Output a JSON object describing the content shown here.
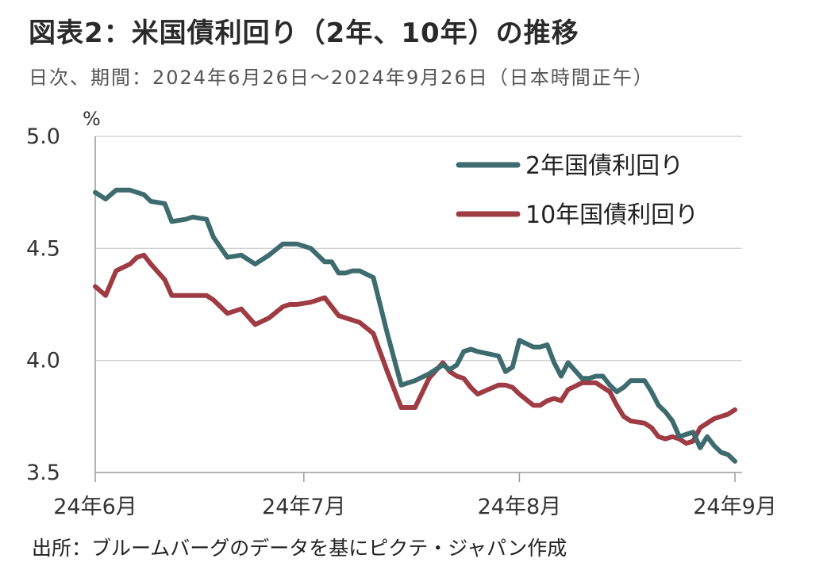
{
  "title": "図表2：米国債利回り（2年、10年）の推移",
  "subtitle": "日次、期間：2024年6月26日～2024年9月26日（日本時間正午）",
  "source": "出所：ブルームバーグのデータを基にピクテ・ジャパン作成",
  "colors": {
    "series_2y": "#3d6b6e",
    "series_10y": "#9e3b43",
    "grid": "#cfcfcf",
    "axis": "#9a9a9a"
  },
  "chart_data": {
    "type": "line",
    "ylabel": "%",
    "ylim": [
      3.5,
      5.0
    ],
    "yticks": [
      "5.0",
      "4.5",
      "4.0",
      "3.5"
    ],
    "ytick_values": [
      5.0,
      4.5,
      4.0,
      3.5
    ],
    "xlim": [
      0,
      92
    ],
    "xticks": [
      {
        "label": "24年6月",
        "pos": 0
      },
      {
        "label": "24年7月",
        "pos": 30
      },
      {
        "label": "24年8月",
        "pos": 61
      },
      {
        "label": "24年9月",
        "pos": 92
      }
    ],
    "legend_position": "top-right",
    "grid": true,
    "series": [
      {
        "name": "2年国債利回り",
        "x": [
          0,
          1.5,
          3,
          5,
          6,
          7,
          8,
          10,
          11,
          13,
          14,
          16,
          17,
          19,
          21,
          23,
          25,
          27,
          28,
          29,
          31,
          33,
          34,
          35,
          36,
          37,
          38,
          40,
          42,
          44,
          45,
          46,
          48,
          50,
          51,
          52,
          53,
          54,
          55,
          58,
          59,
          60,
          61,
          63,
          64,
          65,
          66,
          67,
          68,
          70,
          71,
          72,
          73,
          74,
          75,
          76,
          77,
          79,
          80,
          81,
          82,
          83,
          84,
          85,
          86,
          87,
          88,
          89,
          90,
          91,
          92
        ],
        "values": [
          4.75,
          4.72,
          4.76,
          4.76,
          4.75,
          4.74,
          4.71,
          4.7,
          4.62,
          4.63,
          4.64,
          4.63,
          4.55,
          4.46,
          4.47,
          4.43,
          4.47,
          4.52,
          4.52,
          4.52,
          4.5,
          4.44,
          4.44,
          4.39,
          4.39,
          4.4,
          4.4,
          4.37,
          4.12,
          3.89,
          3.9,
          3.91,
          3.94,
          3.98,
          3.96,
          3.98,
          4.04,
          4.05,
          4.04,
          4.02,
          3.95,
          3.97,
          4.09,
          4.06,
          4.06,
          4.07,
          3.99,
          3.93,
          3.99,
          3.92,
          3.92,
          3.93,
          3.93,
          3.89,
          3.86,
          3.88,
          3.91,
          3.91,
          3.86,
          3.8,
          3.77,
          3.73,
          3.66,
          3.67,
          3.68,
          3.61,
          3.66,
          3.62,
          3.59,
          3.58,
          3.55
        ]
      },
      {
        "name": "10年国債利回り",
        "x": [
          0,
          1.5,
          3,
          5,
          6,
          7,
          8,
          10,
          11,
          13,
          14,
          16,
          17,
          19,
          21,
          23,
          25,
          27,
          28,
          29,
          31,
          33,
          34,
          35,
          36,
          37,
          38,
          40,
          42,
          44,
          45,
          46,
          48,
          50,
          51,
          52,
          53,
          54,
          55,
          58,
          59,
          60,
          61,
          63,
          64,
          65,
          66,
          67,
          68,
          70,
          71,
          72,
          73,
          74,
          75,
          76,
          77,
          79,
          80,
          81,
          82,
          83,
          84,
          85,
          86,
          87,
          88,
          89,
          90,
          91,
          92
        ],
        "values": [
          4.33,
          4.29,
          4.4,
          4.43,
          4.46,
          4.47,
          4.43,
          4.36,
          4.29,
          4.29,
          4.29,
          4.29,
          4.27,
          4.21,
          4.23,
          4.16,
          4.19,
          4.24,
          4.25,
          4.25,
          4.26,
          4.28,
          4.24,
          4.2,
          4.19,
          4.18,
          4.17,
          4.12,
          3.95,
          3.79,
          3.79,
          3.79,
          3.92,
          3.99,
          3.95,
          3.93,
          3.92,
          3.88,
          3.85,
          3.89,
          3.89,
          3.88,
          3.85,
          3.8,
          3.8,
          3.82,
          3.83,
          3.82,
          3.87,
          3.9,
          3.9,
          3.9,
          3.88,
          3.86,
          3.8,
          3.75,
          3.73,
          3.72,
          3.7,
          3.66,
          3.65,
          3.66,
          3.65,
          3.63,
          3.64,
          3.7,
          3.72,
          3.74,
          3.75,
          3.76,
          3.78
        ]
      }
    ]
  }
}
